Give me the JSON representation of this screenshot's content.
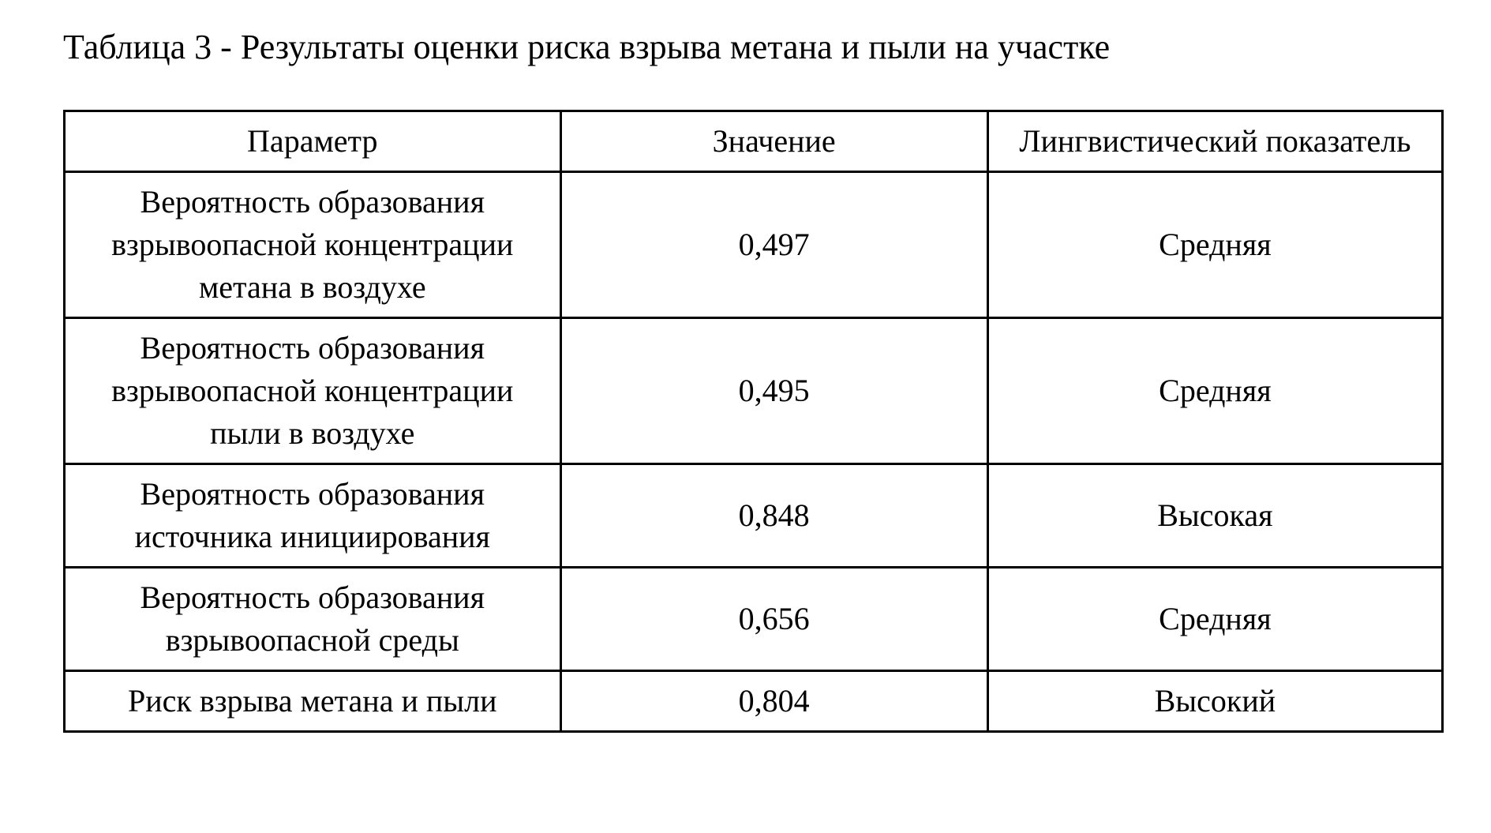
{
  "caption": "Таблица 3 - Результаты оценки риска взрыва метана и пыли на участке",
  "table": {
    "columns": [
      "Параметр",
      "Значение",
      "Лингвистический показатель"
    ],
    "col_widths_pct": [
      36,
      31,
      33
    ],
    "border_color": "#000000",
    "background_color": "#ffffff",
    "text_color": "#000000",
    "font_family": "Times New Roman",
    "header_fontsize_pt": 30,
    "body_fontsize_pt": 30,
    "rows": [
      {
        "param": "Вероятность образования взрывоопасной концентрации метана в воздухе",
        "value": "0,497",
        "label": "Средняя"
      },
      {
        "param": "Вероятность образования взрывоопасной концентрации пыли в воздухе",
        "value": "0,495",
        "label": "Средняя"
      },
      {
        "param": "Вероятность образования источника инициирования",
        "value": "0,848",
        "label": "Высокая"
      },
      {
        "param": "Вероятность образования взрывоопасной среды",
        "value": "0,656",
        "label": "Средняя"
      },
      {
        "param": "Риск взрыва метана и пыли",
        "value": "0,804",
        "label": "Высокий"
      }
    ]
  }
}
